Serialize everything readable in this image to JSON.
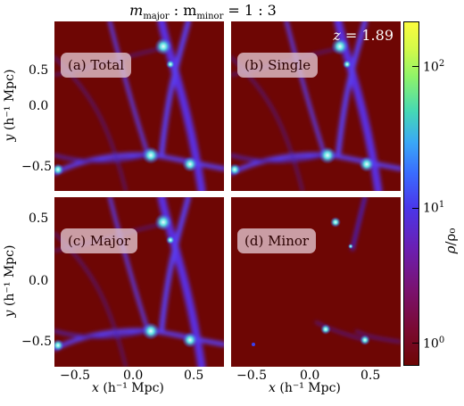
{
  "figure": {
    "title": {
      "lead": "m",
      "sub_a": "major",
      "sep": " : m",
      "sub_b": "minor",
      "ratio": " = 1 : 3"
    },
    "redshift": {
      "symbol": "z",
      "value": " = 1.89"
    },
    "panels": [
      {
        "label": "(a) Total"
      },
      {
        "label": "(b) Single"
      },
      {
        "label": "(c) Major"
      },
      {
        "label": "(d) Minor"
      }
    ],
    "axes": {
      "x_label": {
        "var": "x",
        "unit": " (h⁻¹ Mpc)"
      },
      "y_label": {
        "var": "y",
        "unit": " (h⁻¹ Mpc)"
      },
      "x_ticks": [
        "−0.5",
        "0.0",
        "0.5"
      ],
      "y_ticks": [
        "0.5",
        "0.0",
        "−0.5"
      ],
      "range": [
        -0.7,
        0.7
      ]
    },
    "colorbar": {
      "name_var": "ρ",
      "name_rest": "/ρ₀",
      "ticks": [
        {
          "base": "10",
          "exp": "0"
        },
        {
          "base": "10",
          "exp": "1"
        },
        {
          "base": "10",
          "exp": "2"
        }
      ],
      "scale": "log",
      "colormap": [
        "#6e0604",
        "#7a1270",
        "#4a37ea",
        "#3aa8f6",
        "#45d8b5",
        "#fbfb3d"
      ]
    }
  }
}
